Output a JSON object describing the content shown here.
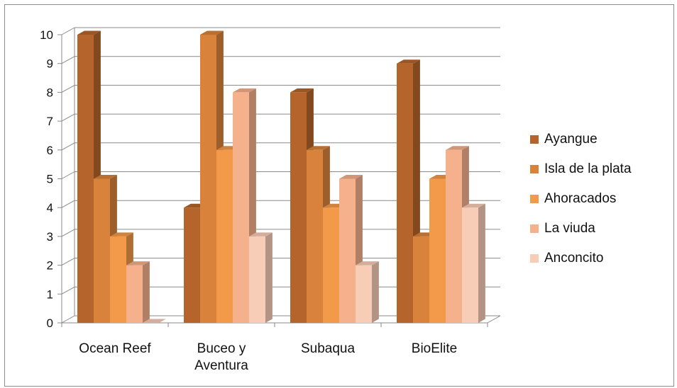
{
  "chart_data": {
    "type": "bar",
    "title": "",
    "xlabel": "",
    "ylabel": "",
    "ylim": [
      0,
      10
    ],
    "yticks": [
      "0",
      "1",
      "2",
      "3",
      "4",
      "5",
      "6",
      "7",
      "8",
      "9",
      "10"
    ],
    "categories": [
      [
        "Ocean Reef"
      ],
      [
        "Buceo y",
        "Aventura"
      ],
      [
        "Subaqua"
      ],
      [
        "BioElite"
      ]
    ],
    "series": [
      {
        "name": "Ayangue",
        "color": "#B5652B",
        "values": [
          10,
          4,
          8,
          9
        ]
      },
      {
        "name": "Isla de la plata",
        "color": "#D9823B",
        "values": [
          5,
          10,
          6,
          3
        ]
      },
      {
        "name": "Ahoracados",
        "color": "#F29A4A",
        "values": [
          3,
          6,
          4,
          5
        ]
      },
      {
        "name": "La viuda",
        "color": "#F5B08C",
        "values": [
          2,
          8,
          5,
          6
        ]
      },
      {
        "name": "Anconcito",
        "color": "#F8CDB8",
        "values": [
          0,
          3,
          2,
          4
        ]
      }
    ],
    "grid": true,
    "legend": "right",
    "style": "3d-clustered-column"
  }
}
